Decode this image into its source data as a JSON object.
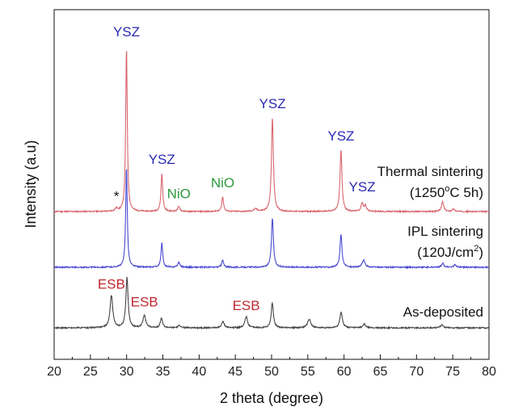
{
  "chart_data": {
    "type": "line",
    "xlabel": "2 theta (degree)",
    "ylabel": "Intensity (a.u)",
    "xlim": [
      20,
      80
    ],
    "x_ticks": [
      "20",
      "25",
      "30",
      "35",
      "40",
      "45",
      "50",
      "55",
      "60",
      "65",
      "70",
      "75",
      "80"
    ],
    "y_ticks_shown": false,
    "grid": false,
    "series": [
      {
        "key": "thermal",
        "label_line1": "Thermal sintering",
        "label_line2_pre": "(1250",
        "label_line2_sup": "o",
        "label_line2_post": "C 5h)",
        "color": "#d9666e",
        "baseline": 262,
        "peaks": [
          [
            28.6,
            3.5,
            0.2
          ],
          [
            29.98,
            203,
            0.13
          ],
          [
            34.86,
            47,
            0.14
          ],
          [
            37.2,
            6,
            0.18
          ],
          [
            43.25,
            18,
            0.15
          ],
          [
            47.8,
            3,
            0.3
          ],
          [
            50.12,
            116,
            0.16
          ],
          [
            59.58,
            76,
            0.16
          ],
          [
            62.5,
            10,
            0.18
          ],
          [
            62.95,
            7,
            0.18
          ],
          [
            73.6,
            12,
            0.18
          ],
          [
            75.1,
            3,
            0.2
          ]
        ]
      },
      {
        "key": "ipl",
        "label_line1": "IPL sintering",
        "label_line2_pre": "(120J/cm",
        "label_line2_sup": "2",
        "label_line2_post": ")",
        "color": "#4a4ad2",
        "baseline": 331,
        "peaks": [
          [
            29.98,
            125,
            0.13
          ],
          [
            34.86,
            30,
            0.14
          ],
          [
            37.2,
            6,
            0.18
          ],
          [
            43.25,
            9,
            0.15
          ],
          [
            50.12,
            61,
            0.16
          ],
          [
            59.58,
            41,
            0.16
          ],
          [
            62.7,
            9,
            0.22
          ],
          [
            73.6,
            5,
            0.18
          ],
          [
            75.3,
            3,
            0.2
          ]
        ]
      },
      {
        "key": "asdep",
        "label_line1": "As-deposited",
        "label_line2_pre": "",
        "label_line2_sup": "",
        "label_line2_post": "",
        "color": "#444444",
        "baseline": 406,
        "peaks": [
          [
            27.9,
            40,
            0.22
          ],
          [
            30.05,
            62,
            0.18
          ],
          [
            32.45,
            16,
            0.22
          ],
          [
            34.8,
            12,
            0.18
          ],
          [
            37.3,
            3,
            0.2
          ],
          [
            43.3,
            8,
            0.2
          ],
          [
            46.5,
            14,
            0.22
          ],
          [
            50.1,
            31,
            0.18
          ],
          [
            55.2,
            11,
            0.25
          ],
          [
            59.6,
            20,
            0.2
          ],
          [
            62.8,
            5,
            0.2
          ],
          [
            73.5,
            4,
            0.2
          ]
        ]
      }
    ],
    "annotations": [
      {
        "text": "YSZ",
        "x": 29.98,
        "series": "thermal",
        "offset": 14,
        "color": "#2a2ab4"
      },
      {
        "text": "YSZ",
        "x": 34.86,
        "series": "thermal",
        "offset": 12,
        "color": "#2a2ab4"
      },
      {
        "text": "NiO",
        "x": 37.2,
        "series": "thermal",
        "offset": 10,
        "color": "#2c9a3c"
      },
      {
        "text": "NiO",
        "x": 43.25,
        "series": "thermal",
        "offset": 12,
        "color": "#2c9a3c"
      },
      {
        "text": "YSZ",
        "x": 50.12,
        "series": "thermal",
        "offset": 12,
        "color": "#2a2ab4"
      },
      {
        "text": "YSZ",
        "x": 59.58,
        "series": "thermal",
        "offset": 12,
        "color": "#2a2ab4"
      },
      {
        "text": "YSZ",
        "x": 62.5,
        "series": "thermal",
        "offset": 14,
        "color": "#2a2ab4"
      },
      {
        "text": "*",
        "x": 28.6,
        "series": "thermal",
        "offset": 8,
        "color": "#111111"
      },
      {
        "text": "ESB",
        "x": 27.9,
        "series": "asdep",
        "offset": 8,
        "color": "#c0282d"
      },
      {
        "text": "ESB",
        "x": 32.45,
        "series": "asdep",
        "offset": 10,
        "color": "#c0282d"
      },
      {
        "text": "ESB",
        "x": 46.5,
        "series": "asdep",
        "offset": 8,
        "color": "#c0282d"
      }
    ]
  }
}
